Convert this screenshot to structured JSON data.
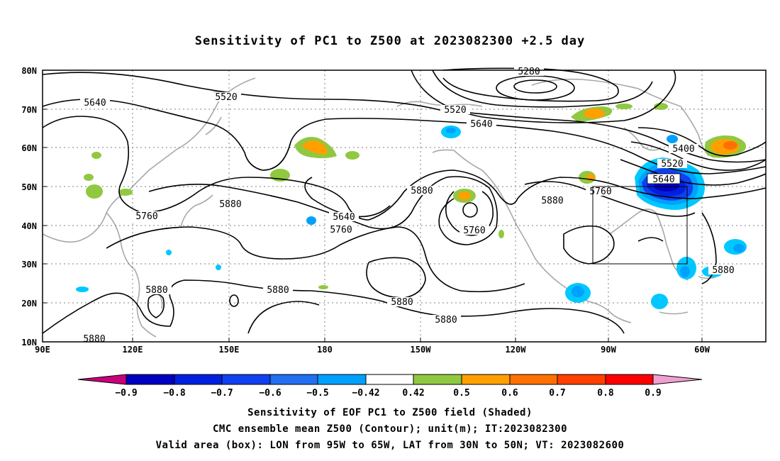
{
  "title": "Sensitivity of PC1 to Z500 at 2023082300 +2.5 day",
  "lat_labels": [
    "80N",
    "70N",
    "60N",
    "50N",
    "40N",
    "30N",
    "20N",
    "10N"
  ],
  "lon_labels": [
    "90E",
    "120E",
    "150E",
    "180",
    "150W",
    "120W",
    "90W",
    "60W"
  ],
  "contour_labels": [
    "5280",
    "5520",
    "5640",
    "5520",
    "5640",
    "5400",
    "5520",
    "5640",
    "5760",
    "5760",
    "5880",
    "5880",
    "5640",
    "5760",
    "5760",
    "5880",
    "5880",
    "5880",
    "5880",
    "5880",
    "5880",
    "5880"
  ],
  "colorbar": {
    "ticks": [
      "−0.9",
      "−0.8",
      "−0.7",
      "−0.6",
      "−0.5",
      "−0.42",
      "0.42",
      "0.5",
      "0.6",
      "0.7",
      "0.8",
      "0.9"
    ],
    "colors": {
      "neg_end": "#c8007c",
      "n09": "#0000c0",
      "n08": "#0020e0",
      "n07": "#1040f0",
      "n06": "#2070f0",
      "n05": "#00a0ff",
      "n042": "#00c8ff",
      "neutral": "#ffffff",
      "p042": "#90c840",
      "p05": "#ffa000",
      "p06": "#ff7000",
      "p07": "#ff4000",
      "p08": "#ff0000",
      "pos_end": "#f0a0d0"
    }
  },
  "caption": {
    "line1": "Sensitivity of EOF PC1 to Z500 field (Shaded)",
    "line2": "CMC ensemble mean Z500 (Contour); unit(m); IT:2023082300",
    "line3": "Valid area (box): LON from 95W to 65W, LAT from 30N to 50N; VT: 2023082600"
  }
}
